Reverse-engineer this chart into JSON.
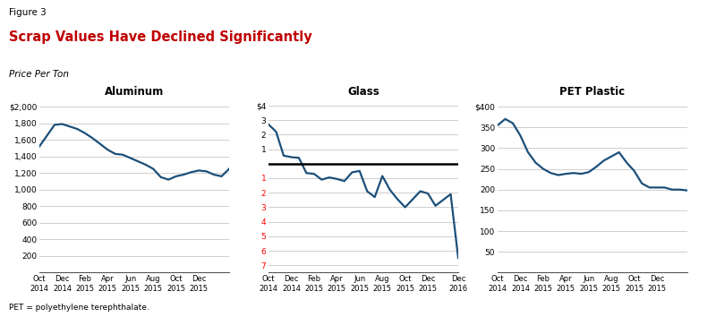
{
  "figure_label": "Figure 3",
  "title": "Scrap Values Have Declined Significantly",
  "subtitle": "Price Per Ton",
  "footnote": "PET = polyethylene terephthalate.",
  "line_color": "#1B4F7A",
  "background_color": "#FFFFFF",
  "title_color": "#C00000",
  "aluminum": {
    "title": "Aluminum",
    "yticks": [
      0,
      200,
      400,
      600,
      800,
      1000,
      1200,
      1400,
      1600,
      1800,
      2000
    ],
    "ytick_labels": [
      "",
      "200",
      "400",
      "600",
      "800",
      "1,000",
      "1,200",
      "1,400",
      "1,600",
      "1,800",
      "$2,000"
    ],
    "ylim": [
      0,
      2100
    ],
    "data_y": [
      1520,
      1650,
      1780,
      1790,
      1760,
      1730,
      1680,
      1620,
      1550,
      1480,
      1430,
      1420,
      1380,
      1340,
      1300,
      1250,
      1150,
      1120,
      1160,
      1180,
      1210,
      1230,
      1220,
      1180,
      1160,
      1250
    ],
    "xtick_pos": [
      0,
      3,
      6,
      9,
      12,
      15,
      18,
      21
    ],
    "xtick_labels": [
      "Oct\n2014",
      "Dec\n2014",
      "Feb\n2015",
      "Apr\n2015",
      "Jun\n2015",
      "Aug\n2015",
      "Oct\n2015",
      "Dec\n2015"
    ]
  },
  "glass": {
    "title": "Glass",
    "yticks": [
      4,
      3,
      2,
      1,
      0,
      -1,
      -2,
      -3,
      -4,
      -5,
      -6,
      -7
    ],
    "ytick_labels": [
      "$4",
      "3",
      "2",
      "1",
      "",
      "1",
      "2",
      "3",
      "4",
      "5",
      "6",
      "7"
    ],
    "ytick_colors": [
      "black",
      "black",
      "black",
      "black",
      "black",
      "red",
      "red",
      "red",
      "red",
      "red",
      "red",
      "red"
    ],
    "ylim": [
      -7.5,
      4.5
    ],
    "zero_line_y": 0,
    "data_y": [
      2.7,
      2.2,
      0.55,
      0.45,
      0.4,
      -0.65,
      -0.7,
      -1.1,
      -0.95,
      -1.05,
      -1.2,
      -0.6,
      -0.5,
      -1.9,
      -2.3,
      -0.85,
      -1.8,
      -2.45,
      -3.0,
      -2.45,
      -1.9,
      -2.05,
      -2.9,
      -2.5,
      -2.1,
      -6.5
    ],
    "xtick_pos": [
      0,
      3,
      6,
      9,
      12,
      15,
      18,
      21,
      25
    ],
    "xtick_labels": [
      "Oct\n2014",
      "Dec\n2014",
      "Feb\n2015",
      "Apr\n2015",
      "Jun\n2015",
      "Aug\n2015",
      "Oct\n2015",
      "Dec\n2015",
      "Dec\n2016"
    ]
  },
  "pet": {
    "title": "PET Plastic",
    "yticks": [
      0,
      50,
      100,
      150,
      200,
      250,
      300,
      350,
      400
    ],
    "ytick_labels": [
      "",
      "50",
      "100",
      "150",
      "200",
      "250",
      "300",
      "350",
      "$400"
    ],
    "ylim": [
      0,
      420
    ],
    "data_y": [
      355,
      370,
      360,
      330,
      290,
      265,
      250,
      240,
      235,
      238,
      240,
      238,
      242,
      255,
      270,
      280,
      290,
      265,
      245,
      215,
      205,
      205,
      205,
      200,
      200,
      198
    ],
    "xtick_pos": [
      0,
      3,
      6,
      9,
      12,
      15,
      18,
      21
    ],
    "xtick_labels": [
      "Oct\n2014",
      "Dec\n2014",
      "Feb\n2015",
      "Apr\n2015",
      "Jun\n2015",
      "Aug\n2015",
      "Oct\n2015",
      "Dec\n2015"
    ]
  }
}
